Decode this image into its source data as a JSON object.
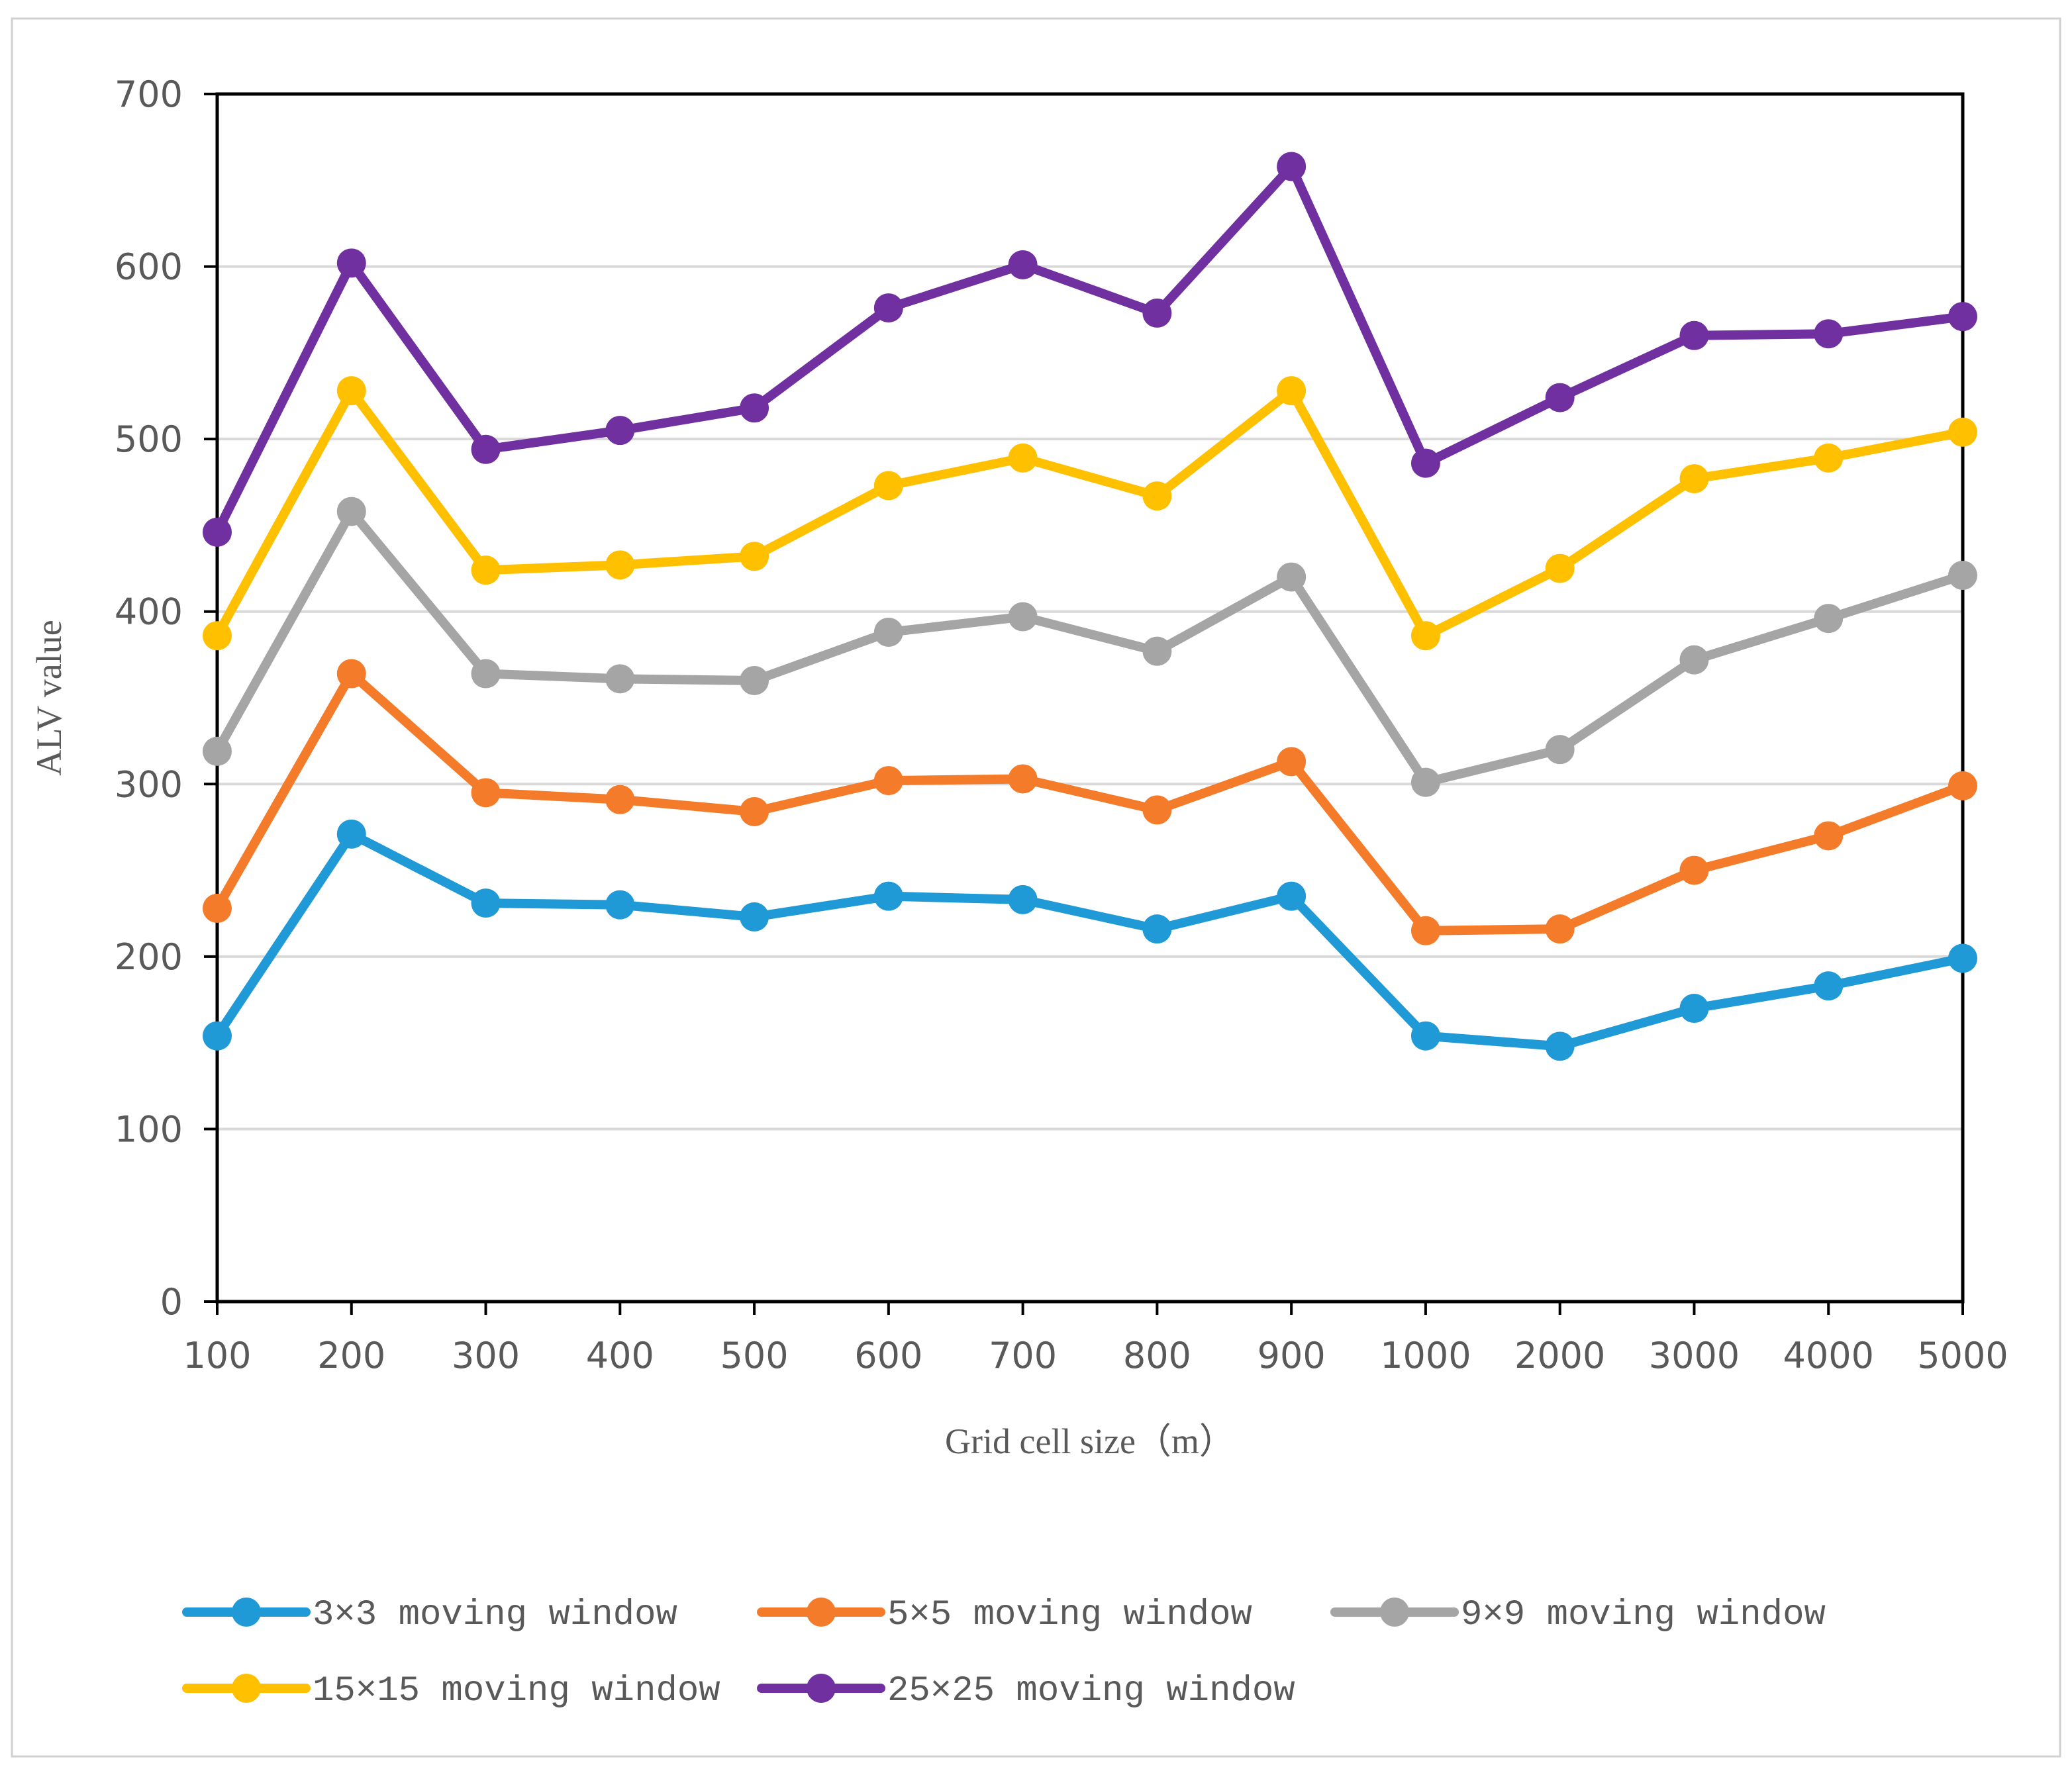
{
  "chart_data": {
    "type": "line",
    "title": "",
    "xlabel": "Grid cell size（m）",
    "ylabel": "ALV value",
    "ylim": [
      0,
      700
    ],
    "yticks": [
      "0",
      "100",
      "200",
      "300",
      "400",
      "500",
      "600",
      "700"
    ],
    "grid": true,
    "legend_position": "bottom",
    "categories": [
      "100",
      "200",
      "300",
      "400",
      "500",
      "600",
      "700",
      "800",
      "900",
      "1000",
      "2000",
      "3000",
      "4000",
      "5000"
    ],
    "series": [
      {
        "name": "3×3 moving window",
        "color": "#1f9ad6",
        "values": [
          154,
          271,
          231,
          230,
          223,
          235,
          233,
          216,
          235,
          154,
          148,
          170,
          183,
          199
        ]
      },
      {
        "name": "5×5 moving window",
        "color": "#f47b2a",
        "values": [
          228,
          364,
          295,
          291,
          284,
          302,
          303,
          285,
          313,
          215,
          216,
          250,
          270,
          299
        ]
      },
      {
        "name": "9×9 moving window",
        "color": "#a5a5a5",
        "values": [
          319,
          458,
          364,
          361,
          360,
          388,
          397,
          377,
          420,
          301,
          320,
          372,
          396,
          421
        ]
      },
      {
        "name": "15×15 moving window",
        "color": "#ffc000",
        "values": [
          386,
          528,
          424,
          427,
          432,
          473,
          489,
          467,
          528,
          386,
          425,
          477,
          489,
          504
        ]
      },
      {
        "name": "25×25 moving window",
        "color": "#7030a0",
        "values": [
          446,
          602,
          494,
          505,
          518,
          576,
          601,
          573,
          658,
          486,
          524,
          560,
          561,
          571
        ]
      }
    ]
  }
}
